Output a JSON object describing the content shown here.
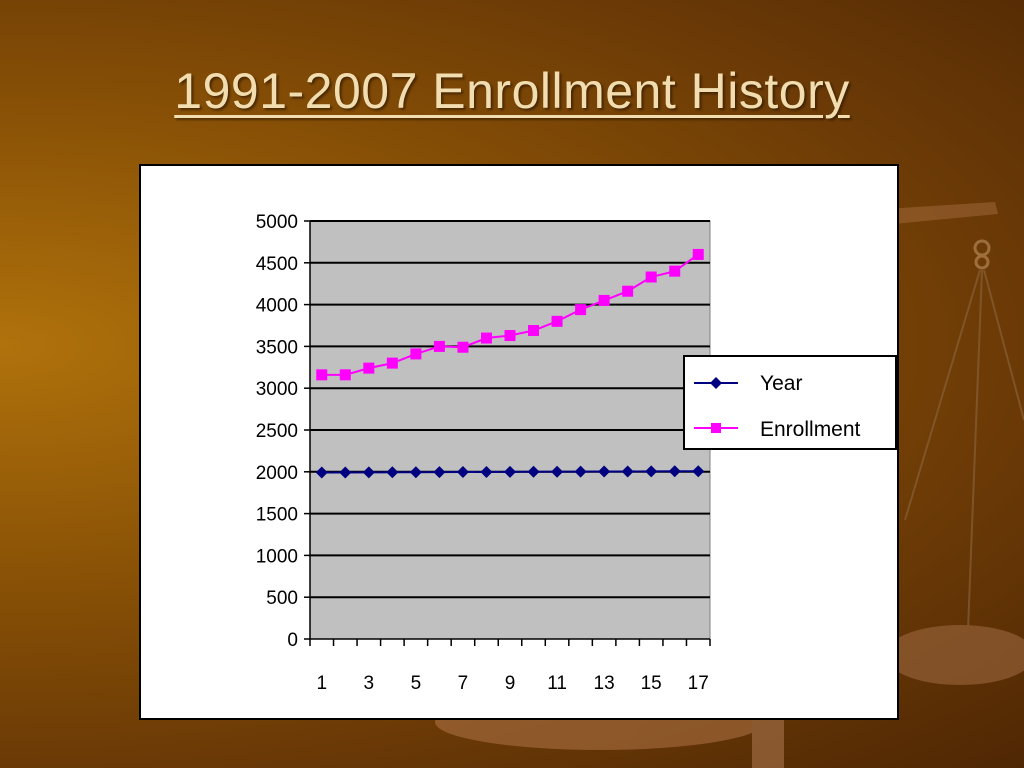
{
  "slide": {
    "title": "1991-2007 Enrollment History"
  },
  "colors": {
    "background": "#8a5206",
    "title": "#f2ddb0",
    "plot_area": "#c0c0c0",
    "year_series": "#000080",
    "enrollment_series": "#ff00ff"
  },
  "chart_data": {
    "type": "line",
    "title": "",
    "xlabel": "",
    "ylabel": "",
    "x": [
      1,
      2,
      3,
      4,
      5,
      6,
      7,
      8,
      9,
      10,
      11,
      12,
      13,
      14,
      15,
      16,
      17
    ],
    "x_tick_labels": [
      "1",
      "3",
      "5",
      "7",
      "9",
      "11",
      "13",
      "15",
      "17"
    ],
    "y_tick_labels": [
      "5000",
      "4500",
      "4000",
      "3500",
      "3000",
      "2500",
      "2000",
      "1500",
      "1000",
      "500",
      "0"
    ],
    "ylim": [
      0,
      5000
    ],
    "grid": true,
    "legend_position": "right",
    "series": [
      {
        "name": "Year",
        "marker": "diamond",
        "values": [
          1991,
          1992,
          1993,
          1994,
          1995,
          1996,
          1997,
          1998,
          1999,
          2000,
          2001,
          2002,
          2003,
          2004,
          2005,
          2006,
          2007
        ]
      },
      {
        "name": "Enrollment",
        "marker": "square",
        "values": [
          3160,
          3160,
          3240,
          3300,
          3410,
          3500,
          3490,
          3600,
          3630,
          3690,
          3800,
          3940,
          4050,
          4160,
          4330,
          4400,
          4600
        ]
      }
    ]
  }
}
